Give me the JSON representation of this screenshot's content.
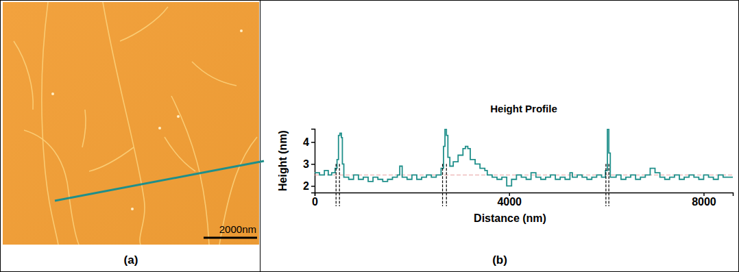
{
  "chart_data": {
    "type": "line",
    "title": "Height Profile",
    "x_label": "Distance (nm)",
    "y_label": "Height (nm)",
    "x": [
      0,
      100,
      200,
      280,
      350,
      420,
      460,
      490,
      520,
      550,
      570,
      600,
      700,
      800,
      900,
      1000,
      1100,
      1200,
      1300,
      1400,
      1500,
      1600,
      1700,
      1750,
      1800,
      1900,
      2000,
      2100,
      2200,
      2300,
      2400,
      2500,
      2600,
      2650,
      2680,
      2710,
      2740,
      2780,
      2850,
      2950,
      3050,
      3100,
      3150,
      3200,
      3300,
      3400,
      3500,
      3550,
      3650,
      3750,
      3850,
      3950,
      4050,
      4150,
      4250,
      4350,
      4450,
      4550,
      4650,
      4750,
      4850,
      4950,
      5050,
      5150,
      5250,
      5300,
      5400,
      5500,
      5600,
      5700,
      5800,
      5900,
      5980,
      6020,
      6050,
      6080,
      6200,
      6300,
      6400,
      6500,
      6600,
      6700,
      6800,
      6900,
      7000,
      7100,
      7200,
      7300,
      7400,
      7500,
      7600,
      7700,
      7800,
      7900,
      8000,
      8100,
      8200,
      8300,
      8400,
      8500,
      8600
    ],
    "values": [
      2.6,
      2.5,
      2.7,
      2.5,
      2.6,
      2.8,
      3.2,
      4.3,
      4.4,
      4.2,
      3.0,
      2.4,
      2.3,
      2.5,
      2.3,
      2.4,
      2.2,
      2.4,
      2.3,
      2.2,
      2.3,
      2.4,
      2.5,
      2.9,
      2.4,
      2.3,
      2.5,
      2.3,
      2.4,
      2.5,
      2.4,
      2.5,
      2.8,
      3.8,
      4.6,
      4.3,
      3.3,
      2.9,
      3.1,
      3.4,
      3.7,
      3.8,
      3.7,
      3.2,
      3.0,
      2.8,
      2.7,
      2.5,
      2.4,
      2.3,
      2.4,
      2.0,
      2.3,
      2.5,
      2.4,
      2.3,
      2.6,
      2.4,
      2.3,
      2.4,
      2.5,
      2.3,
      2.4,
      2.3,
      2.6,
      2.4,
      2.5,
      2.4,
      2.3,
      2.4,
      2.5,
      2.4,
      2.7,
      4.6,
      3.5,
      2.4,
      2.5,
      2.3,
      2.4,
      2.5,
      2.3,
      2.4,
      2.5,
      2.8,
      2.6,
      2.4,
      2.3,
      2.4,
      2.5,
      2.3,
      2.4,
      2.5,
      2.4,
      2.3,
      2.5,
      2.4,
      2.3,
      2.5,
      2.4,
      2.4,
      2.4
    ],
    "color": "#1f8f8a",
    "xlim": [
      0,
      8600
    ],
    "xticks": [
      0,
      4000,
      8000
    ],
    "ylim": [
      1.7,
      4.6
    ],
    "yticks": [
      2,
      3,
      4
    ],
    "reference_line": 2.5,
    "annotation_lines": [
      440,
      510,
      2630,
      2710,
      5990,
      6050
    ]
  },
  "panels": [
    {
      "label": "(a)",
      "scale_bar": "2000nm"
    },
    {
      "label": "(b)"
    }
  ]
}
